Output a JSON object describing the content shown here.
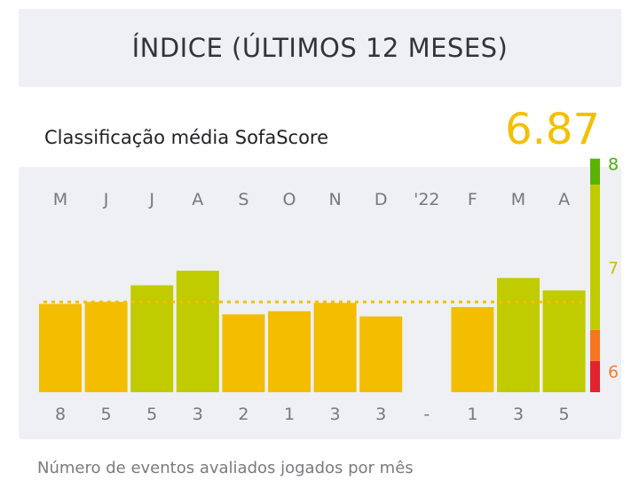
{
  "header": {
    "title": "ÍNDICE (ÚLTIMOS 12 MESES)"
  },
  "rating": {
    "label": "Classificação média SofaScore",
    "value": "6.87"
  },
  "footnote": "Número de eventos avaliados jogados por mês",
  "colors": {
    "panel_bg": "#eff0f3",
    "bar_orange": "#f3bd00",
    "bar_green": "#c0cb00",
    "average_line": "#f3c000",
    "scale_red": "#e0242b",
    "scale_orange": "#f7761f",
    "scale_yellowgreen": "#c0cb00",
    "scale_green": "#59b400",
    "tick_orange": "#f17f2f",
    "tick_yellow": "#c8c100",
    "tick_green": "#4cae13",
    "label_gray": "#77777c"
  },
  "chart_data": {
    "type": "bar",
    "categories": [
      "M",
      "J",
      "J",
      "A",
      "S",
      "O",
      "N",
      "D",
      "'22",
      "F",
      "M",
      "A"
    ],
    "values": [
      6.85,
      6.87,
      7.03,
      7.17,
      6.75,
      6.78,
      6.86,
      6.73,
      null,
      6.82,
      7.1,
      6.98
    ],
    "counts": [
      "8",
      "5",
      "5",
      "3",
      "2",
      "1",
      "3",
      "3",
      "-",
      "1",
      "3",
      "5"
    ],
    "bar_colors": [
      "orange",
      "orange",
      "green",
      "green",
      "orange",
      "orange",
      "orange",
      "orange",
      null,
      "orange",
      "green",
      "green"
    ],
    "average": 6.87,
    "ylim": [
      6,
      8.5
    ],
    "scale_ticks": [
      "6",
      "7",
      "8"
    ]
  }
}
